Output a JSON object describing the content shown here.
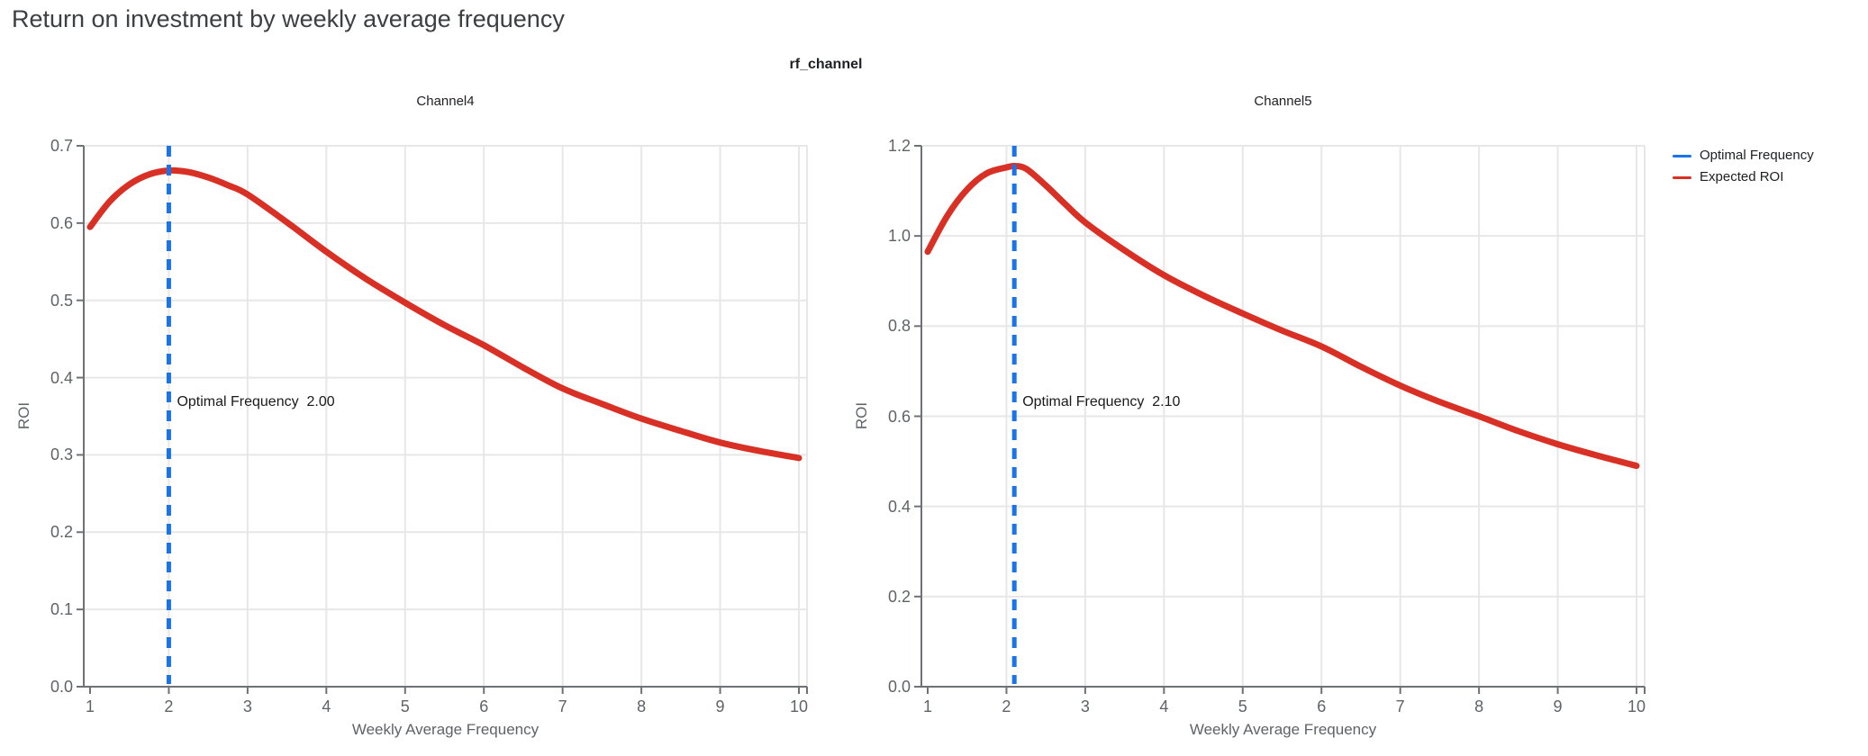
{
  "header": {
    "title": "Return on investment by weekly average frequency"
  },
  "figure": {
    "facet_label": "rf_channel"
  },
  "colors": {
    "optimal_frequency_blue": "#1A73E8",
    "expected_roi_red": "#D93025",
    "gridline": "#E7E7E7",
    "axis_line": "#6E7276",
    "tick_text": "#5F6368",
    "title_text": "#3C4043",
    "annotation_text": "#1A1A1A",
    "background": "#FFFFFF"
  },
  "legend": [
    {
      "label": "Optimal Frequency",
      "color": "#1A73E8"
    },
    {
      "label": "Expected ROI",
      "color": "#D93025"
    }
  ],
  "chart_data": [
    {
      "type": "line",
      "title": "Channel4",
      "xlabel": "Weekly Average Frequency",
      "ylabel": "ROI",
      "xlim": [
        1,
        10
      ],
      "ylim": [
        0.0,
        0.7
      ],
      "xticks": [
        "1",
        "2",
        "3",
        "4",
        "5",
        "6",
        "7",
        "8",
        "9",
        "10"
      ],
      "yticks": [
        "0.0",
        "0.1",
        "0.2",
        "0.3",
        "0.4",
        "0.5",
        "0.6",
        "0.7"
      ],
      "grid": true,
      "optimal_frequency": 2.0,
      "annotation": "Optimal Frequency  2.00",
      "series": [
        {
          "name": "Expected ROI",
          "x": [
            1,
            1.25,
            1.5,
            1.75,
            2,
            2.25,
            2.5,
            2.75,
            3,
            3.5,
            4,
            4.5,
            5,
            5.5,
            6,
            6.5,
            7,
            7.5,
            8,
            8.5,
            9,
            9.5,
            10
          ],
          "y": [
            0.595,
            0.628,
            0.65,
            0.663,
            0.668,
            0.666,
            0.659,
            0.649,
            0.637,
            0.601,
            0.563,
            0.528,
            0.497,
            0.468,
            0.442,
            0.413,
            0.386,
            0.366,
            0.347,
            0.331,
            0.316,
            0.305,
            0.296
          ]
        }
      ]
    },
    {
      "type": "line",
      "title": "Channel5",
      "xlabel": "Weekly Average Frequency",
      "ylabel": "ROI",
      "xlim": [
        1,
        10
      ],
      "ylim": [
        0.0,
        1.2
      ],
      "xticks": [
        "1",
        "2",
        "3",
        "4",
        "5",
        "6",
        "7",
        "8",
        "9",
        "10"
      ],
      "yticks": [
        "0.0",
        "0.2",
        "0.4",
        "0.6",
        "0.8",
        "1.0",
        "1.2"
      ],
      "grid": true,
      "optimal_frequency": 2.1,
      "annotation": "Optimal Frequency  2.10",
      "series": [
        {
          "name": "Expected ROI",
          "x": [
            1,
            1.25,
            1.5,
            1.75,
            2,
            2.1,
            2.25,
            2.5,
            2.75,
            3,
            3.5,
            4,
            4.5,
            5,
            5.5,
            6,
            6.5,
            7,
            7.5,
            8,
            8.5,
            9,
            9.5,
            10
          ],
          "y": [
            0.965,
            1.045,
            1.103,
            1.139,
            1.152,
            1.155,
            1.149,
            1.112,
            1.07,
            1.03,
            0.968,
            0.913,
            0.868,
            0.828,
            0.79,
            0.755,
            0.71,
            0.668,
            0.632,
            0.6,
            0.567,
            0.538,
            0.513,
            0.49
          ]
        }
      ]
    }
  ]
}
